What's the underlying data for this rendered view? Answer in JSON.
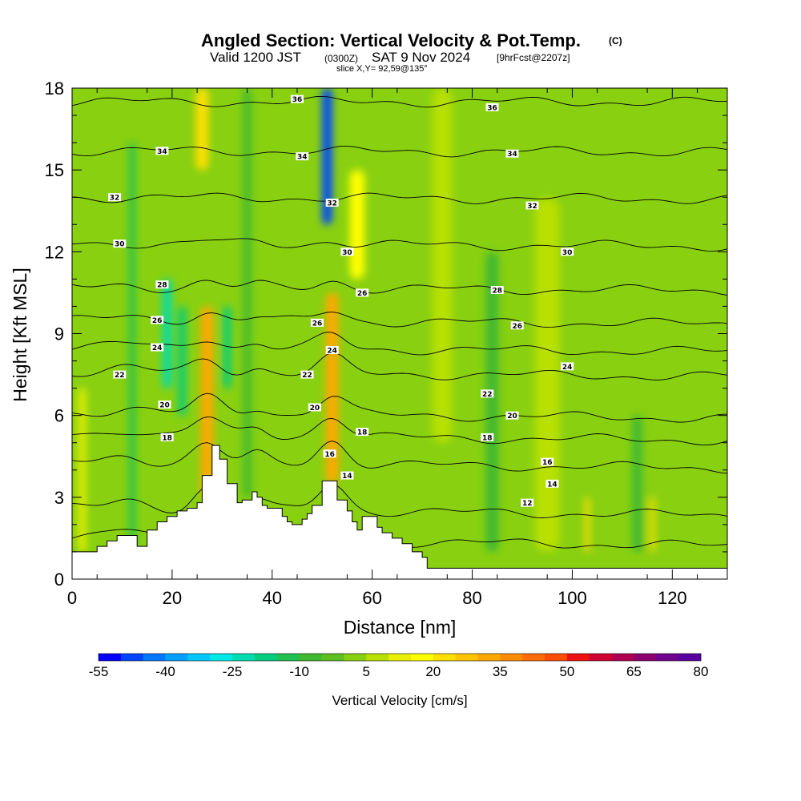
{
  "header": {
    "title": "Angled Section: Vertical Velocity & Pot.Temp.",
    "title_badge": "(C)",
    "valid_prefix": "Valid 1200 JST",
    "valid_zulu": "(0300Z)",
    "valid_date": "SAT 9 Nov 2024",
    "forecast": "[9hrFcst@2207z]",
    "slice": "slice X,Y= 92,59@135°"
  },
  "chart_data": {
    "type": "heatmap",
    "title": "Angled Section: Vertical Velocity & Pot.Temp.",
    "xlabel": "Distance [nm]",
    "ylabel": "Height [Kft MSL]",
    "xlim": [
      0,
      131
    ],
    "ylim": [
      0,
      18
    ],
    "x_ticks": [
      "0",
      "20",
      "40",
      "60",
      "80",
      "100",
      "120"
    ],
    "x_tick_values": [
      0,
      20,
      40,
      60,
      80,
      100,
      120
    ],
    "y_ticks": [
      "0",
      "3",
      "6",
      "9",
      "12",
      "15",
      "18"
    ],
    "y_tick_values": [
      0,
      3,
      6,
      9,
      12,
      15,
      18
    ],
    "colorbar": {
      "label": "Vertical Velocity [cm/s]",
      "min": -55,
      "max": 80,
      "step": 5,
      "tick_labels": [
        "-55",
        "-40",
        "-25",
        "-10",
        "5",
        "20",
        "35",
        "50",
        "65",
        "80"
      ],
      "colors": [
        "#0000ff",
        "#0044ff",
        "#0077ff",
        "#00a0ff",
        "#00c8ff",
        "#00e8e8",
        "#00dcb0",
        "#00cc80",
        "#20c050",
        "#40b830",
        "#5cc020",
        "#88d010",
        "#b8e000",
        "#e8f000",
        "#ffff00",
        "#ffe000",
        "#ffc400",
        "#ffa800",
        "#ff8c00",
        "#ff6c00",
        "#ff4c00",
        "#ee1010",
        "#d00030",
        "#b00050",
        "#8c0070",
        "#700090",
        "#5a00a0"
      ]
    },
    "velocity_features": [
      {
        "x": 27,
        "y_from": 3,
        "y_to": 10,
        "width": 2.5,
        "value": 30
      },
      {
        "x": 52,
        "y_from": 3.5,
        "y_to": 10.5,
        "width": 2.5,
        "value": 30
      },
      {
        "x": 57,
        "y_from": 11,
        "y_to": 15,
        "width": 3,
        "value": 18
      },
      {
        "x": 26,
        "y_from": 15,
        "y_to": 18,
        "width": 2.5,
        "value": 22
      },
      {
        "x": 51,
        "y_from": 13,
        "y_to": 18,
        "width": 2,
        "value": -50
      },
      {
        "x": 19,
        "y_from": 7,
        "y_to": 11,
        "width": 1.8,
        "value": -25
      },
      {
        "x": 22,
        "y_from": 6,
        "y_to": 10,
        "width": 1.5,
        "value": -20
      },
      {
        "x": 31,
        "y_from": 7,
        "y_to": 10,
        "width": 1.5,
        "value": -20
      },
      {
        "x": 35,
        "y_from": 3,
        "y_to": 18,
        "width": 1.5,
        "value": -10
      },
      {
        "x": 12,
        "y_from": 1,
        "y_to": 16,
        "width": 1.2,
        "value": -12
      },
      {
        "x": 84,
        "y_from": 1,
        "y_to": 12,
        "width": 2.5,
        "value": -10
      },
      {
        "x": 113,
        "y_from": 1,
        "y_to": 6,
        "width": 2,
        "value": -10
      },
      {
        "x": 95,
        "y_from": 1,
        "y_to": 14,
        "width": 5,
        "value": 6
      },
      {
        "x": 74,
        "y_from": 5,
        "y_to": 18,
        "width": 4,
        "value": 8
      },
      {
        "x": 2,
        "y_from": 1,
        "y_to": 7,
        "width": 1.5,
        "value": 10
      },
      {
        "x": 103,
        "y_from": 1,
        "y_to": 3,
        "width": 1,
        "value": 22
      },
      {
        "x": 116,
        "y_from": 1,
        "y_to": 3,
        "width": 1,
        "value": 20
      }
    ],
    "theta_levels": [
      {
        "value": 12,
        "label": "12",
        "base": 1.5
      },
      {
        "value": 14,
        "label": "14",
        "base": 2.6
      },
      {
        "value": 16,
        "label": "16",
        "base": 4.3
      },
      {
        "value": 18,
        "label": "18",
        "base": 5.3
      },
      {
        "value": 20,
        "label": "20",
        "base": 6.1
      },
      {
        "value": 22,
        "label": "22",
        "base": 7.6
      },
      {
        "value": 24,
        "label": "24",
        "base": 8.5
      },
      {
        "value": 26,
        "label": "26",
        "base": 9.5
      },
      {
        "value": 28,
        "label": "28",
        "base": 10.7
      },
      {
        "value": 30,
        "label": "30",
        "base": 12.3
      },
      {
        "value": 32,
        "label": "32",
        "base": 14.0
      },
      {
        "value": 34,
        "label": "34",
        "base": 15.7
      },
      {
        "value": 36,
        "label": "36",
        "base": 17.5
      }
    ],
    "contour_labels": [
      {
        "label": "36",
        "x": 45,
        "y": 17.6
      },
      {
        "label": "36",
        "x": 84,
        "y": 17.3
      },
      {
        "label": "34",
        "x": 18,
        "y": 15.7
      },
      {
        "label": "34",
        "x": 46,
        "y": 15.5
      },
      {
        "label": "34",
        "x": 88,
        "y": 15.6
      },
      {
        "label": "32",
        "x": 8.5,
        "y": 14.0
      },
      {
        "label": "32",
        "x": 52,
        "y": 13.8
      },
      {
        "label": "32",
        "x": 92,
        "y": 13.7
      },
      {
        "label": "30",
        "x": 9.5,
        "y": 12.3
      },
      {
        "label": "30",
        "x": 55,
        "y": 12.0
      },
      {
        "label": "30",
        "x": 99,
        "y": 12.0
      },
      {
        "label": "28",
        "x": 18,
        "y": 10.8
      },
      {
        "label": "28",
        "x": 85,
        "y": 10.6
      },
      {
        "label": "26",
        "x": 17,
        "y": 9.5
      },
      {
        "label": "26",
        "x": 49,
        "y": 9.4
      },
      {
        "label": "26",
        "x": 58,
        "y": 10.5
      },
      {
        "label": "26",
        "x": 89,
        "y": 9.3
      },
      {
        "label": "24",
        "x": 17,
        "y": 8.5
      },
      {
        "label": "24",
        "x": 52,
        "y": 8.4
      },
      {
        "label": "24",
        "x": 99,
        "y": 7.8
      },
      {
        "label": "22",
        "x": 9.5,
        "y": 7.5
      },
      {
        "label": "22",
        "x": 47,
        "y": 7.5
      },
      {
        "label": "22",
        "x": 83,
        "y": 6.8
      },
      {
        "label": "20",
        "x": 18.5,
        "y": 6.4
      },
      {
        "label": "20",
        "x": 48.5,
        "y": 6.3
      },
      {
        "label": "20",
        "x": 88,
        "y": 6.0
      },
      {
        "label": "18",
        "x": 19,
        "y": 5.2
      },
      {
        "label": "18",
        "x": 58,
        "y": 5.4
      },
      {
        "label": "18",
        "x": 83,
        "y": 5.2
      },
      {
        "label": "16",
        "x": 51.5,
        "y": 4.6
      },
      {
        "label": "16",
        "x": 95,
        "y": 4.3
      },
      {
        "label": "14",
        "x": 55,
        "y": 3.8
      },
      {
        "label": "14",
        "x": 96,
        "y": 3.5
      },
      {
        "label": "12",
        "x": 91,
        "y": 2.8
      }
    ],
    "terrain": [
      [
        0,
        1.0
      ],
      [
        5,
        1.0
      ],
      [
        5,
        1.2
      ],
      [
        7,
        1.2
      ],
      [
        7,
        1.4
      ],
      [
        9,
        1.4
      ],
      [
        9,
        1.6
      ],
      [
        13,
        1.6
      ],
      [
        13,
        1.2
      ],
      [
        15,
        1.2
      ],
      [
        15,
        1.8
      ],
      [
        17,
        1.8
      ],
      [
        17,
        2.1
      ],
      [
        19,
        2.1
      ],
      [
        19,
        2.3
      ],
      [
        21,
        2.3
      ],
      [
        21,
        2.5
      ],
      [
        23,
        2.5
      ],
      [
        23,
        2.6
      ],
      [
        25,
        2.6
      ],
      [
        25,
        2.8
      ],
      [
        26,
        2.8
      ],
      [
        26,
        3.8
      ],
      [
        28,
        3.8
      ],
      [
        28,
        4.9
      ],
      [
        29.5,
        4.9
      ],
      [
        29.5,
        4.4
      ],
      [
        31,
        4.4
      ],
      [
        31,
        3.5
      ],
      [
        33,
        3.5
      ],
      [
        33,
        2.8
      ],
      [
        34,
        2.8
      ],
      [
        34,
        2.9
      ],
      [
        36,
        2.9
      ],
      [
        36,
        3.2
      ],
      [
        37,
        3.2
      ],
      [
        37,
        3.0
      ],
      [
        38,
        3.0
      ],
      [
        38,
        2.7
      ],
      [
        39,
        2.7
      ],
      [
        39,
        2.6
      ],
      [
        42,
        2.6
      ],
      [
        42,
        2.3
      ],
      [
        43,
        2.3
      ],
      [
        43,
        2.1
      ],
      [
        44,
        2.1
      ],
      [
        44,
        2.0
      ],
      [
        46,
        2.0
      ],
      [
        46,
        2.2
      ],
      [
        47,
        2.2
      ],
      [
        47,
        2.4
      ],
      [
        48,
        2.4
      ],
      [
        48,
        2.7
      ],
      [
        50,
        2.7
      ],
      [
        50,
        3.6
      ],
      [
        53,
        3.6
      ],
      [
        53,
        2.9
      ],
      [
        55,
        2.9
      ],
      [
        55,
        2.5
      ],
      [
        56,
        2.5
      ],
      [
        56,
        2.1
      ],
      [
        57,
        2.1
      ],
      [
        57,
        1.8
      ],
      [
        58,
        1.8
      ],
      [
        58,
        2.3
      ],
      [
        61,
        2.3
      ],
      [
        61,
        1.9
      ],
      [
        62,
        1.9
      ],
      [
        62,
        1.7
      ],
      [
        64,
        1.7
      ],
      [
        64,
        1.5
      ],
      [
        66,
        1.5
      ],
      [
        66,
        1.3
      ],
      [
        68,
        1.3
      ],
      [
        68,
        1.0
      ],
      [
        70,
        1.0
      ],
      [
        70,
        0.8
      ],
      [
        71,
        0.8
      ],
      [
        71,
        0.4
      ],
      [
        131,
        0.4
      ],
      [
        131,
        0
      ]
    ]
  }
}
